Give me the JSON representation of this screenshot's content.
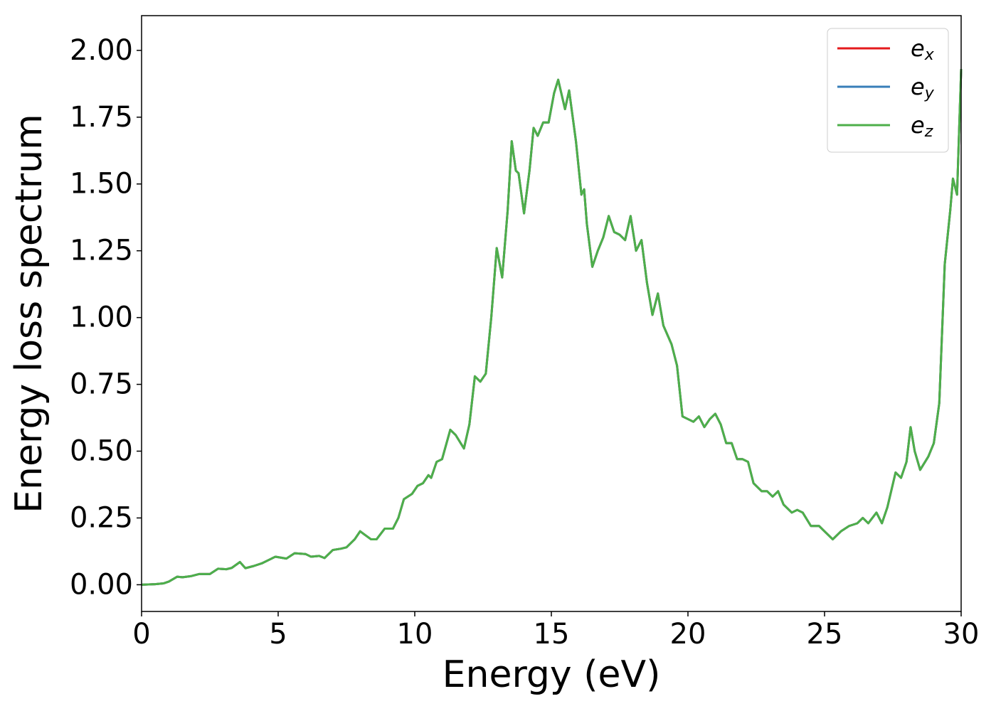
{
  "chart_data": {
    "type": "line",
    "xlabel": "Energy (eV)",
    "ylabel": "Energy loss spectrum",
    "x": [
      0,
      0.5,
      0.8,
      1.0,
      1.3,
      1.5,
      1.8,
      2.1,
      2.5,
      2.8,
      3.1,
      3.3,
      3.6,
      3.8,
      4.1,
      4.4,
      4.9,
      5.3,
      5.6,
      6.0,
      6.2,
      6.5,
      6.7,
      7.0,
      7.3,
      7.5,
      7.8,
      8.0,
      8.2,
      8.4,
      8.6,
      8.9,
      9.2,
      9.4,
      9.6,
      9.9,
      10.1,
      10.3,
      10.5,
      10.6,
      10.8,
      11.0,
      11.3,
      11.5,
      11.8,
      12.0,
      12.2,
      12.4,
      12.6,
      12.8,
      13.0,
      13.2,
      13.4,
      13.55,
      13.7,
      13.8,
      14.0,
      14.2,
      14.35,
      14.5,
      14.7,
      14.9,
      15.1,
      15.25,
      15.5,
      15.65,
      15.9,
      16.1,
      16.2,
      16.3,
      16.5,
      16.7,
      16.9,
      17.1,
      17.3,
      17.5,
      17.7,
      17.9,
      18.1,
      18.3,
      18.5,
      18.7,
      18.9,
      19.1,
      19.4,
      19.6,
      19.8,
      20.0,
      20.2,
      20.4,
      20.6,
      20.8,
      21.0,
      21.2,
      21.4,
      21.6,
      21.8,
      22.0,
      22.2,
      22.4,
      22.7,
      22.9,
      23.1,
      23.3,
      23.5,
      23.8,
      24.0,
      24.2,
      24.5,
      24.8,
      25.0,
      25.3,
      25.6,
      25.9,
      26.2,
      26.4,
      26.6,
      26.9,
      27.1,
      27.3,
      27.6,
      27.8,
      28.0,
      28.15,
      28.3,
      28.5,
      28.8,
      29.0,
      29.2,
      29.4,
      29.6,
      29.7,
      29.85,
      30.0
    ],
    "series": [
      {
        "name": "ex",
        "color": "#e41a1c",
        "values": [
          0,
          0.002,
          0.005,
          0.012,
          0.03,
          0.028,
          0.032,
          0.04,
          0.04,
          0.06,
          0.058,
          0.063,
          0.085,
          0.062,
          0.07,
          0.08,
          0.105,
          0.098,
          0.118,
          0.115,
          0.105,
          0.108,
          0.1,
          0.13,
          0.135,
          0.14,
          0.17,
          0.2,
          0.185,
          0.17,
          0.17,
          0.21,
          0.21,
          0.25,
          0.32,
          0.34,
          0.37,
          0.38,
          0.41,
          0.4,
          0.46,
          0.47,
          0.58,
          0.56,
          0.51,
          0.6,
          0.78,
          0.76,
          0.79,
          1.0,
          1.26,
          1.15,
          1.4,
          1.66,
          1.55,
          1.54,
          1.39,
          1.55,
          1.71,
          1.68,
          1.73,
          1.73,
          1.84,
          1.89,
          1.78,
          1.85,
          1.66,
          1.46,
          1.48,
          1.35,
          1.19,
          1.25,
          1.3,
          1.38,
          1.32,
          1.31,
          1.29,
          1.38,
          1.25,
          1.29,
          1.13,
          1.01,
          1.09,
          0.97,
          0.9,
          0.82,
          0.63,
          0.62,
          0.61,
          0.63,
          0.59,
          0.62,
          0.64,
          0.6,
          0.53,
          0.53,
          0.47,
          0.47,
          0.46,
          0.38,
          0.35,
          0.35,
          0.33,
          0.35,
          0.3,
          0.27,
          0.28,
          0.27,
          0.22,
          0.22,
          0.2,
          0.17,
          0.2,
          0.22,
          0.23,
          0.25,
          0.23,
          0.27,
          0.23,
          0.29,
          0.42,
          0.4,
          0.46,
          0.59,
          0.5,
          0.43,
          0.48,
          0.53,
          0.68,
          1.2,
          1.4,
          1.52,
          1.46,
          1.93
        ]
      },
      {
        "name": "ey",
        "color": "#377eb8",
        "values": [
          0,
          0.002,
          0.005,
          0.012,
          0.03,
          0.028,
          0.032,
          0.04,
          0.04,
          0.06,
          0.058,
          0.063,
          0.085,
          0.062,
          0.07,
          0.08,
          0.105,
          0.098,
          0.118,
          0.115,
          0.105,
          0.108,
          0.1,
          0.13,
          0.135,
          0.14,
          0.17,
          0.2,
          0.185,
          0.17,
          0.17,
          0.21,
          0.21,
          0.25,
          0.32,
          0.34,
          0.37,
          0.38,
          0.41,
          0.4,
          0.46,
          0.47,
          0.58,
          0.56,
          0.51,
          0.6,
          0.78,
          0.76,
          0.79,
          1.0,
          1.26,
          1.15,
          1.4,
          1.66,
          1.55,
          1.54,
          1.39,
          1.55,
          1.71,
          1.68,
          1.73,
          1.73,
          1.84,
          1.89,
          1.78,
          1.85,
          1.66,
          1.46,
          1.48,
          1.35,
          1.19,
          1.25,
          1.3,
          1.38,
          1.32,
          1.31,
          1.29,
          1.38,
          1.25,
          1.29,
          1.13,
          1.01,
          1.09,
          0.97,
          0.9,
          0.82,
          0.63,
          0.62,
          0.61,
          0.63,
          0.59,
          0.62,
          0.64,
          0.6,
          0.53,
          0.53,
          0.47,
          0.47,
          0.46,
          0.38,
          0.35,
          0.35,
          0.33,
          0.35,
          0.3,
          0.27,
          0.28,
          0.27,
          0.22,
          0.22,
          0.2,
          0.17,
          0.2,
          0.22,
          0.23,
          0.25,
          0.23,
          0.27,
          0.23,
          0.29,
          0.42,
          0.4,
          0.46,
          0.59,
          0.5,
          0.43,
          0.48,
          0.53,
          0.68,
          1.2,
          1.4,
          1.52,
          1.46,
          1.93
        ]
      },
      {
        "name": "ez",
        "color": "#4daf4a",
        "values": [
          0,
          0.002,
          0.005,
          0.012,
          0.03,
          0.028,
          0.032,
          0.04,
          0.04,
          0.06,
          0.058,
          0.063,
          0.085,
          0.062,
          0.07,
          0.08,
          0.105,
          0.098,
          0.118,
          0.115,
          0.105,
          0.108,
          0.1,
          0.13,
          0.135,
          0.14,
          0.17,
          0.2,
          0.185,
          0.17,
          0.17,
          0.21,
          0.21,
          0.25,
          0.32,
          0.34,
          0.37,
          0.38,
          0.41,
          0.4,
          0.46,
          0.47,
          0.58,
          0.56,
          0.51,
          0.6,
          0.78,
          0.76,
          0.79,
          1.0,
          1.26,
          1.15,
          1.4,
          1.66,
          1.55,
          1.54,
          1.39,
          1.55,
          1.71,
          1.68,
          1.73,
          1.73,
          1.84,
          1.89,
          1.78,
          1.85,
          1.66,
          1.46,
          1.48,
          1.35,
          1.19,
          1.25,
          1.3,
          1.38,
          1.32,
          1.31,
          1.29,
          1.38,
          1.25,
          1.29,
          1.13,
          1.01,
          1.09,
          0.97,
          0.9,
          0.82,
          0.63,
          0.62,
          0.61,
          0.63,
          0.59,
          0.62,
          0.64,
          0.6,
          0.53,
          0.53,
          0.47,
          0.47,
          0.46,
          0.38,
          0.35,
          0.35,
          0.33,
          0.35,
          0.3,
          0.27,
          0.28,
          0.27,
          0.22,
          0.22,
          0.2,
          0.17,
          0.2,
          0.22,
          0.23,
          0.25,
          0.23,
          0.27,
          0.23,
          0.29,
          0.42,
          0.4,
          0.46,
          0.59,
          0.5,
          0.43,
          0.48,
          0.53,
          0.68,
          1.2,
          1.4,
          1.52,
          1.46,
          1.93
        ]
      }
    ],
    "xlim": [
      0,
      30
    ],
    "xticks": [
      0,
      5,
      10,
      15,
      20,
      25,
      30
    ],
    "ylim": [
      -0.1,
      2.13
    ],
    "yticks": [
      {
        "value": 0,
        "label": "0.00"
      },
      {
        "value": 0.25,
        "label": "0.25"
      },
      {
        "value": 0.5,
        "label": "0.50"
      },
      {
        "value": 0.75,
        "label": "0.75"
      },
      {
        "value": 1.0,
        "label": "1.00"
      },
      {
        "value": 1.25,
        "label": "1.25"
      },
      {
        "value": 1.5,
        "label": "1.50"
      },
      {
        "value": 1.75,
        "label": "1.75"
      },
      {
        "value": 2.0,
        "label": "2.00"
      }
    ],
    "grid": false,
    "legend": "upper right"
  }
}
